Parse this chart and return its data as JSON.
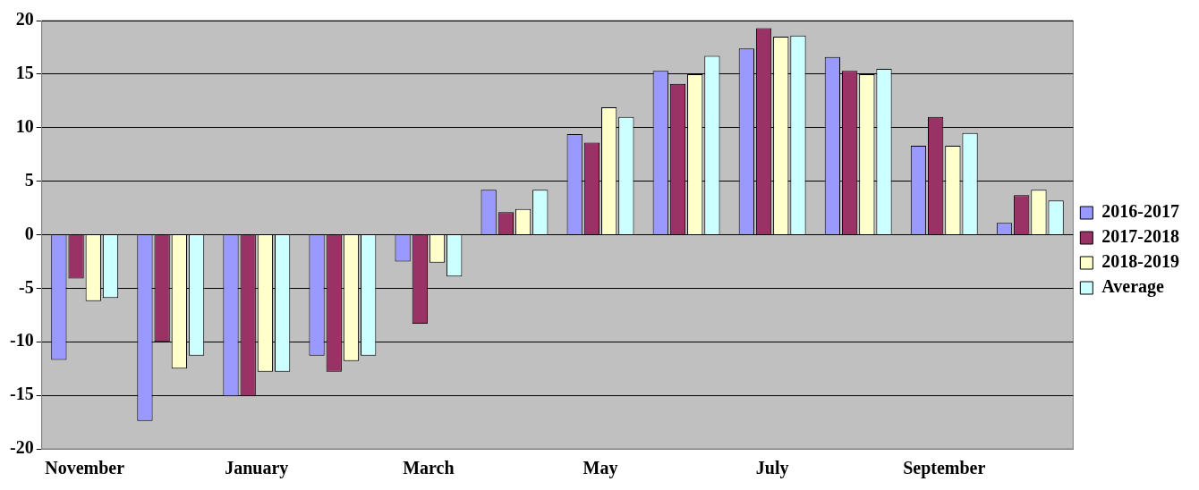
{
  "chart_data": {
    "type": "bar",
    "categories": [
      "November",
      null,
      "January",
      null,
      "March",
      null,
      "May",
      null,
      "July",
      null,
      "September",
      null
    ],
    "series": [
      {
        "name": "2016-2017",
        "color": "#9999ff",
        "values": [
          -11.7,
          -17.4,
          -15.1,
          -11.3,
          -2.5,
          4.2,
          9.4,
          15.3,
          17.4,
          16.6,
          8.3,
          1.1
        ]
      },
      {
        "name": "2017-2018",
        "color": "#993366",
        "values": [
          -4.1,
          -10.0,
          -15.1,
          -12.8,
          -8.3,
          2.1,
          8.6,
          14.1,
          19.3,
          15.3,
          11.0,
          3.7
        ]
      },
      {
        "name": "2018-2019",
        "color": "#ffffcc",
        "values": [
          -6.2,
          -12.5,
          -12.8,
          -11.8,
          -2.6,
          2.4,
          11.9,
          15.0,
          18.5,
          15.0,
          8.3,
          4.2
        ]
      },
      {
        "name": "Average",
        "color": "#ccffff",
        "values": [
          -5.9,
          -11.3,
          -12.8,
          -11.3,
          -3.9,
          4.2,
          11.0,
          16.7,
          18.6,
          15.5,
          9.5,
          3.2
        ]
      }
    ],
    "ylim": [
      -20,
      20
    ],
    "yticks": [
      -20,
      -15,
      -10,
      -5,
      0,
      5,
      10,
      15,
      20
    ],
    "grid": "y",
    "legend": "right"
  }
}
